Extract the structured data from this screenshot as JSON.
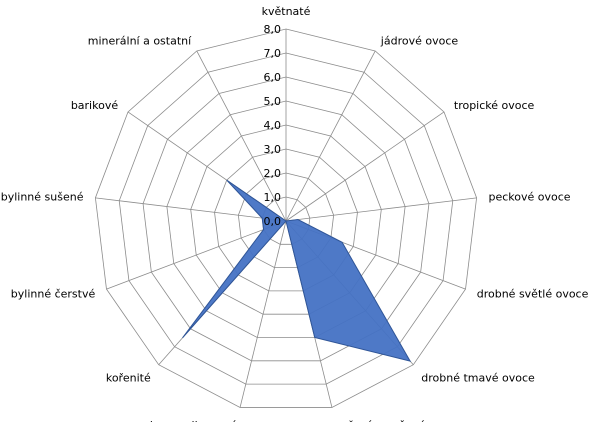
{
  "chart_data": {
    "type": "radar",
    "categories": [
      "květnaté",
      "jádrové ovoce",
      "tropické ovoce",
      "peckové ovoce",
      "drobné světlé ovoce",
      "drobné tmavé ovoce",
      "vařené a sušené ovoce",
      "karamelizované",
      "kořenité",
      "bylinné čerstvé",
      "bylinné sušené",
      "barikové",
      "minerální a ostatní"
    ],
    "series": [
      {
        "values": [
          0.0,
          0.0,
          0.0,
          0.5,
          2.5,
          7.8,
          5.0,
          0.0,
          6.5,
          1.0,
          1.0,
          3.0,
          0.0
        ]
      }
    ],
    "rlim": [
      0,
      8
    ],
    "ticks": [
      "0,0",
      "1,0",
      "2,0",
      "3,0",
      "4,0",
      "5,0",
      "6,0",
      "7,0",
      "8,0"
    ],
    "grid": true,
    "colors": {
      "series": "#4472c4",
      "series_stroke": "#2f5597",
      "grid": "#8c8c8c"
    }
  }
}
